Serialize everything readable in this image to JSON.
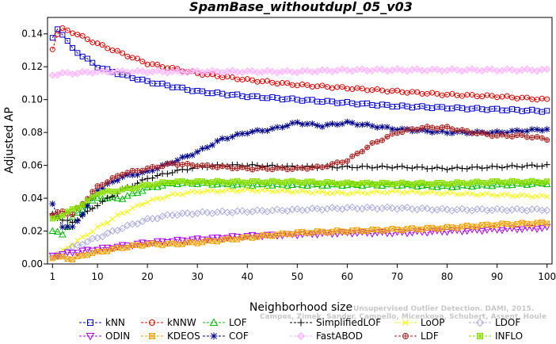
{
  "chart_data": {
    "type": "line",
    "title": "SpamBase_withoutdupl_05_v03",
    "xlabel": "Neighborhood size",
    "ylabel": "Adjusted AP",
    "xlim": [
      0,
      101
    ],
    "ylim": [
      0,
      0.15
    ],
    "xticks": [
      1,
      10,
      20,
      30,
      40,
      50,
      60,
      70,
      80,
      90,
      100
    ],
    "yticks": [
      0.0,
      0.02,
      0.04,
      0.06,
      0.08,
      0.1,
      0.12,
      0.14
    ],
    "ytick_labels": [
      "0.00",
      "0.02",
      "0.04",
      "0.06",
      "0.08",
      "0.10",
      "0.12",
      "0.14"
    ],
    "grid": false,
    "legend_position": "bottom",
    "watermark": "Campos, Zimek, Sander, Campello, Micenkova, Schubert, Assent, Houle Unsupervised Outlier Detection. DAMI, 2015.",
    "series": [
      {
        "name": "kNN",
        "color": "#0000cc",
        "marker": "square",
        "anchors": [
          [
            1,
            0.137
          ],
          [
            2,
            0.143
          ],
          [
            3,
            0.14
          ],
          [
            5,
            0.131
          ],
          [
            10,
            0.12
          ],
          [
            15,
            0.115
          ],
          [
            20,
            0.111
          ],
          [
            30,
            0.105
          ],
          [
            40,
            0.102
          ],
          [
            50,
            0.1
          ],
          [
            60,
            0.098
          ],
          [
            70,
            0.096
          ],
          [
            80,
            0.095
          ],
          [
            90,
            0.094
          ],
          [
            100,
            0.093
          ]
        ]
      },
      {
        "name": "kNNW",
        "color": "#dd0000",
        "marker": "circle",
        "anchors": [
          [
            1,
            0.131
          ],
          [
            2,
            0.14
          ],
          [
            3,
            0.143
          ],
          [
            5,
            0.141
          ],
          [
            10,
            0.134
          ],
          [
            15,
            0.128
          ],
          [
            20,
            0.122
          ],
          [
            30,
            0.116
          ],
          [
            40,
            0.112
          ],
          [
            50,
            0.109
          ],
          [
            60,
            0.107
          ],
          [
            70,
            0.105
          ],
          [
            80,
            0.103
          ],
          [
            90,
            0.102
          ],
          [
            100,
            0.1
          ]
        ]
      },
      {
        "name": "LOF",
        "color": "#00bb00",
        "marker": "triangle",
        "anchors": [
          [
            1,
            0.02
          ],
          [
            3,
            0.018
          ],
          [
            5,
            0.028
          ],
          [
            8,
            0.036
          ],
          [
            10,
            0.04
          ],
          [
            15,
            0.04
          ],
          [
            20,
            0.046
          ],
          [
            25,
            0.049
          ],
          [
            30,
            0.049
          ],
          [
            40,
            0.048
          ],
          [
            50,
            0.048
          ],
          [
            60,
            0.048
          ],
          [
            70,
            0.048
          ],
          [
            80,
            0.047
          ],
          [
            90,
            0.048
          ],
          [
            100,
            0.049
          ]
        ]
      },
      {
        "name": "SimplifiedLOF",
        "color": "#000000",
        "marker": "plus",
        "anchors": [
          [
            1,
            0.03
          ],
          [
            3,
            0.027
          ],
          [
            5,
            0.025
          ],
          [
            10,
            0.036
          ],
          [
            15,
            0.045
          ],
          [
            20,
            0.052
          ],
          [
            25,
            0.056
          ],
          [
            30,
            0.059
          ],
          [
            35,
            0.06
          ],
          [
            40,
            0.06
          ],
          [
            50,
            0.059
          ],
          [
            60,
            0.059
          ],
          [
            70,
            0.059
          ],
          [
            80,
            0.058
          ],
          [
            90,
            0.059
          ],
          [
            100,
            0.06
          ]
        ]
      },
      {
        "name": "LoOP",
        "color": "#f5f500",
        "marker": "x",
        "anchors": [
          [
            1,
            0.004
          ],
          [
            3,
            0.008
          ],
          [
            5,
            0.012
          ],
          [
            10,
            0.022
          ],
          [
            15,
            0.031
          ],
          [
            20,
            0.038
          ],
          [
            25,
            0.042
          ],
          [
            30,
            0.044
          ],
          [
            40,
            0.045
          ],
          [
            50,
            0.044
          ],
          [
            60,
            0.043
          ],
          [
            70,
            0.044
          ],
          [
            80,
            0.043
          ],
          [
            90,
            0.042
          ],
          [
            100,
            0.041
          ]
        ]
      },
      {
        "name": "LDOF",
        "color": "#aaaadd",
        "marker": "diamond",
        "anchors": [
          [
            1,
            0.004
          ],
          [
            3,
            0.006
          ],
          [
            5,
            0.01
          ],
          [
            10,
            0.016
          ],
          [
            15,
            0.022
          ],
          [
            20,
            0.027
          ],
          [
            25,
            0.03
          ],
          [
            30,
            0.031
          ],
          [
            40,
            0.032
          ],
          [
            50,
            0.033
          ],
          [
            60,
            0.034
          ],
          [
            70,
            0.034
          ],
          [
            80,
            0.033
          ],
          [
            90,
            0.033
          ],
          [
            100,
            0.033
          ]
        ]
      },
      {
        "name": "ODIN",
        "color": "#aa00ee",
        "marker": "triangle-down",
        "anchors": [
          [
            1,
            0.005
          ],
          [
            3,
            0.006
          ],
          [
            5,
            0.007
          ],
          [
            10,
            0.009
          ],
          [
            20,
            0.013
          ],
          [
            30,
            0.015
          ],
          [
            40,
            0.017
          ],
          [
            50,
            0.018
          ],
          [
            60,
            0.019
          ],
          [
            70,
            0.019
          ],
          [
            80,
            0.02
          ],
          [
            90,
            0.021
          ],
          [
            100,
            0.022
          ]
        ]
      },
      {
        "name": "KDEOS",
        "color": "#f0a000",
        "marker": "square-x",
        "anchors": [
          [
            1,
            0.004
          ],
          [
            3,
            0.004
          ],
          [
            5,
            0.003
          ],
          [
            8,
            0.006
          ],
          [
            10,
            0.007
          ],
          [
            15,
            0.01
          ],
          [
            20,
            0.012
          ],
          [
            25,
            0.012
          ],
          [
            30,
            0.013
          ],
          [
            40,
            0.016
          ],
          [
            50,
            0.019
          ],
          [
            60,
            0.02
          ],
          [
            70,
            0.021
          ],
          [
            80,
            0.022
          ],
          [
            90,
            0.024
          ],
          [
            100,
            0.025
          ]
        ]
      },
      {
        "name": "COF",
        "color": "#00008b",
        "marker": "asterisk",
        "anchors": [
          [
            1,
            0.036
          ],
          [
            3,
            0.023
          ],
          [
            5,
            0.022
          ],
          [
            8,
            0.035
          ],
          [
            10,
            0.045
          ],
          [
            15,
            0.053
          ],
          [
            20,
            0.056
          ],
          [
            25,
            0.062
          ],
          [
            30,
            0.068
          ],
          [
            35,
            0.076
          ],
          [
            40,
            0.08
          ],
          [
            45,
            0.082
          ],
          [
            50,
            0.086
          ],
          [
            55,
            0.084
          ],
          [
            60,
            0.086
          ],
          [
            65,
            0.084
          ],
          [
            70,
            0.082
          ],
          [
            80,
            0.08
          ],
          [
            90,
            0.08
          ],
          [
            100,
            0.082
          ]
        ]
      },
      {
        "name": "FastABOD",
        "color": "#ffb0ff",
        "marker": "diamond-filled",
        "anchors": [
          [
            1,
            0.115
          ],
          [
            3,
            0.116
          ],
          [
            5,
            0.116
          ],
          [
            10,
            0.117
          ],
          [
            20,
            0.117
          ],
          [
            30,
            0.117
          ],
          [
            40,
            0.117
          ],
          [
            50,
            0.117
          ],
          [
            60,
            0.118
          ],
          [
            70,
            0.118
          ],
          [
            80,
            0.118
          ],
          [
            90,
            0.118
          ],
          [
            100,
            0.118
          ]
        ]
      },
      {
        "name": "LDF",
        "color": "#aa2222",
        "marker": "circle-plus",
        "anchors": [
          [
            1,
            0.03
          ],
          [
            3,
            0.032
          ],
          [
            5,
            0.03
          ],
          [
            10,
            0.047
          ],
          [
            15,
            0.055
          ],
          [
            20,
            0.058
          ],
          [
            25,
            0.061
          ],
          [
            30,
            0.06
          ],
          [
            40,
            0.058
          ],
          [
            50,
            0.058
          ],
          [
            55,
            0.059
          ],
          [
            60,
            0.063
          ],
          [
            65,
            0.073
          ],
          [
            70,
            0.08
          ],
          [
            75,
            0.083
          ],
          [
            80,
            0.083
          ],
          [
            85,
            0.08
          ],
          [
            90,
            0.078
          ],
          [
            95,
            0.078
          ],
          [
            100,
            0.076
          ]
        ]
      },
      {
        "name": "INFLO",
        "color": "#88dd00",
        "marker": "square-star",
        "anchors": [
          [
            1,
            0.027
          ],
          [
            3,
            0.03
          ],
          [
            5,
            0.033
          ],
          [
            8,
            0.038
          ],
          [
            10,
            0.043
          ],
          [
            15,
            0.045
          ],
          [
            20,
            0.048
          ],
          [
            25,
            0.05
          ],
          [
            30,
            0.05
          ],
          [
            40,
            0.05
          ],
          [
            50,
            0.05
          ],
          [
            60,
            0.049
          ],
          [
            70,
            0.049
          ],
          [
            80,
            0.049
          ],
          [
            90,
            0.05
          ],
          [
            100,
            0.05
          ]
        ]
      }
    ]
  }
}
